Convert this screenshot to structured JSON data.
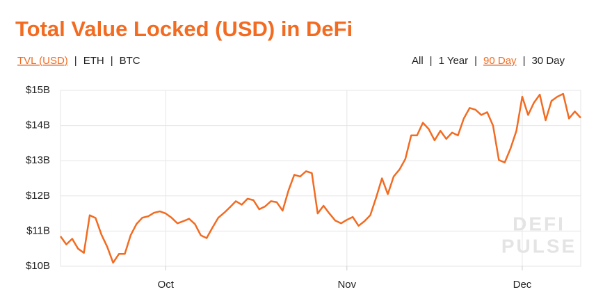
{
  "chart_data": {
    "type": "line",
    "title": "Total Value Locked (USD) in DeFi",
    "tabs_left": [
      {
        "label": "TVL (USD)",
        "active": true
      },
      {
        "label": "ETH",
        "active": false
      },
      {
        "label": "BTC",
        "active": false
      }
    ],
    "tabs_right": [
      {
        "label": "All",
        "active": false
      },
      {
        "label": "1 Year",
        "active": false
      },
      {
        "label": "90 Day",
        "active": true
      },
      {
        "label": "30 Day",
        "active": false
      }
    ],
    "watermark": [
      "DEFI",
      "PULSE"
    ],
    "categories": [
      null,
      null,
      null,
      null,
      null,
      null,
      null,
      null,
      null,
      null,
      null,
      null,
      null,
      null,
      null,
      null,
      null,
      null,
      "Oct",
      null,
      null,
      null,
      null,
      null,
      null,
      null,
      null,
      null,
      null,
      null,
      null,
      null,
      null,
      null,
      null,
      null,
      null,
      null,
      null,
      null,
      null,
      null,
      null,
      null,
      null,
      null,
      null,
      null,
      null,
      "Nov",
      null,
      null,
      null,
      null,
      null,
      null,
      null,
      null,
      null,
      null,
      null,
      null,
      null,
      null,
      null,
      null,
      null,
      null,
      null,
      null,
      null,
      null,
      null,
      null,
      null,
      null,
      null,
      null,
      null,
      "Dec",
      null,
      null,
      null,
      null,
      null,
      null,
      null,
      null,
      null,
      null
    ],
    "series": [
      {
        "name": "TVL (USD)",
        "color": "#f26b21",
        "values": [
          10.85,
          10.62,
          10.78,
          10.5,
          10.38,
          11.45,
          11.37,
          10.9,
          10.55,
          10.1,
          10.35,
          10.35,
          10.88,
          11.2,
          11.38,
          11.42,
          11.52,
          11.56,
          11.5,
          11.38,
          11.22,
          11.28,
          11.35,
          11.2,
          10.88,
          10.8,
          11.1,
          11.38,
          11.52,
          11.68,
          11.85,
          11.75,
          11.92,
          11.88,
          11.62,
          11.7,
          11.85,
          11.82,
          11.58,
          12.15,
          12.6,
          12.55,
          12.7,
          12.65,
          11.5,
          11.72,
          11.5,
          11.3,
          11.22,
          11.32,
          11.4,
          11.15,
          11.28,
          11.45,
          11.95,
          12.5,
          12.05,
          12.55,
          12.75,
          13.05,
          13.72,
          13.72,
          14.08,
          13.9,
          13.58,
          13.85,
          13.62,
          13.8,
          13.72,
          14.2,
          14.5,
          14.45,
          14.3,
          14.38,
          14.0,
          13.02,
          12.95,
          13.35,
          13.85,
          14.82,
          14.3,
          14.65,
          14.88,
          14.15,
          14.7,
          14.82,
          14.9,
          14.2,
          14.4,
          14.22
        ]
      }
    ],
    "ylim": [
      10,
      15
    ],
    "yticks": [
      {
        "value": 10,
        "label": "$10B"
      },
      {
        "value": 11,
        "label": "$11B"
      },
      {
        "value": 12,
        "label": "$12B"
      },
      {
        "value": 13,
        "label": "$13B"
      },
      {
        "value": 14,
        "label": "$14B"
      },
      {
        "value": 15,
        "label": "$15B"
      }
    ],
    "grid": true
  }
}
